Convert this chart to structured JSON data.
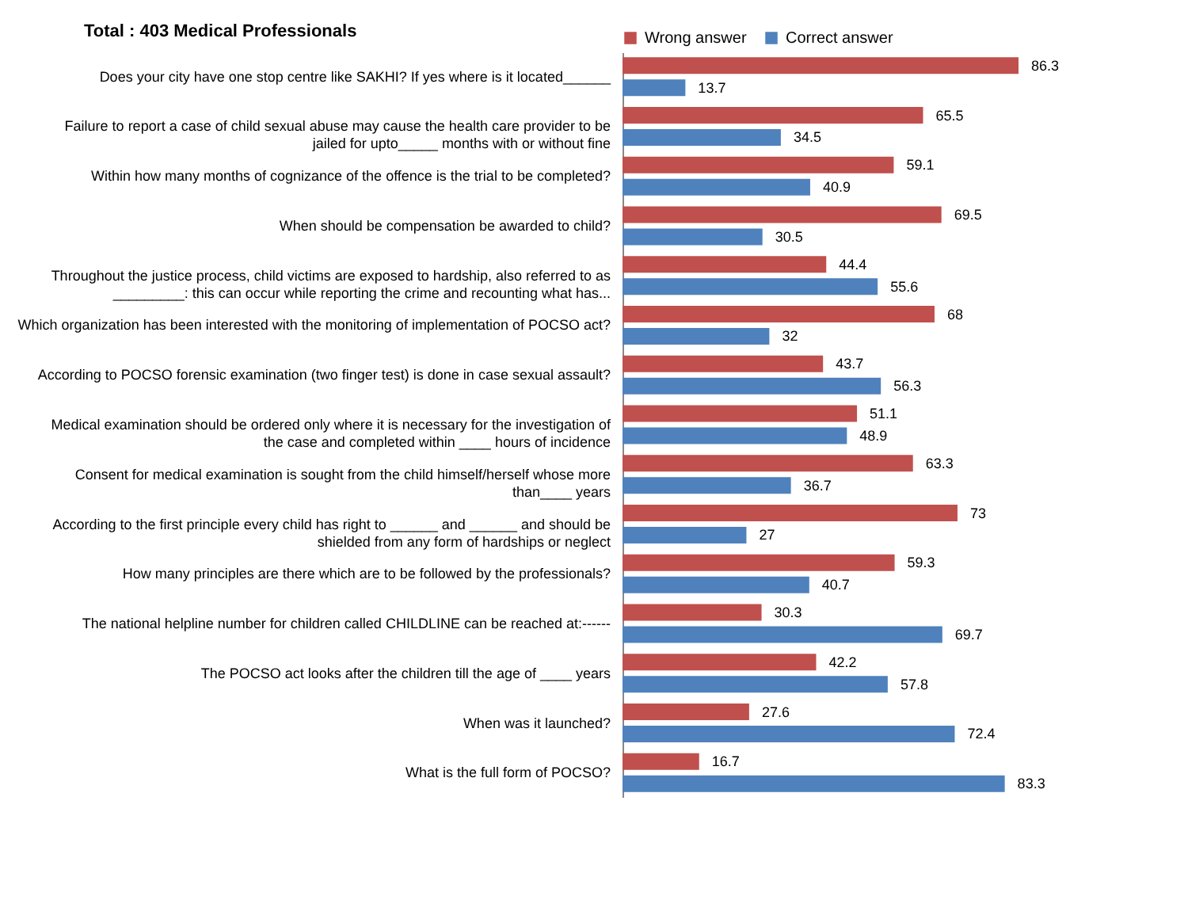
{
  "chart_data": {
    "type": "bar",
    "orientation": "horizontal",
    "title": "Total : 403 Medical Professionals",
    "categories": [
      "Does your city have one stop centre like SAKHI? If yes where is it located______",
      "Failure to report a case of child sexual abuse may cause the health care provider to be jailed for upto_____ months with or without fine",
      "Within how many months of cognizance of the offence is the trial to be completed?",
      "When should be compensation be awarded to child?",
      "Throughout the justice process, child victims are exposed to hardship, also referred to as _________: this can occur while reporting the crime and recounting what has...",
      "Which organization has been interested with the monitoring of implementation of POCSO act?",
      "According to POCSO forensic examination (two finger test) is done in case sexual assault?",
      "Medical examination should be ordered only where it is necessary for the investigation of the case and completed within ____ hours of incidence",
      "Consent for medical examination is sought from the child himself/herself whose more than____ years",
      "According to the first principle every child has right to ______ and ______ and should be shielded from any form of hardships or neglect",
      "How many principles are there which are to be followed by the professionals?",
      "The national helpline number for children called CHILDLINE can be reached at:------",
      "The POCSO act looks after the children till the age of ____ years",
      "When was it launched?",
      "What is the full form of POCSO?"
    ],
    "series": [
      {
        "name": "Wrong answer",
        "color": "#c0504d",
        "values": [
          86.3,
          65.5,
          59.1,
          69.5,
          44.4,
          68,
          43.7,
          51.1,
          63.3,
          73,
          59.3,
          30.3,
          42.2,
          27.6,
          16.7
        ]
      },
      {
        "name": "Correct answer",
        "color": "#4f81bd",
        "values": [
          13.7,
          34.5,
          40.9,
          30.5,
          55.6,
          32,
          56.3,
          48.9,
          36.7,
          27,
          40.7,
          69.7,
          57.8,
          72.4,
          83.3
        ]
      }
    ],
    "data_labels": true,
    "legend": "top"
  }
}
